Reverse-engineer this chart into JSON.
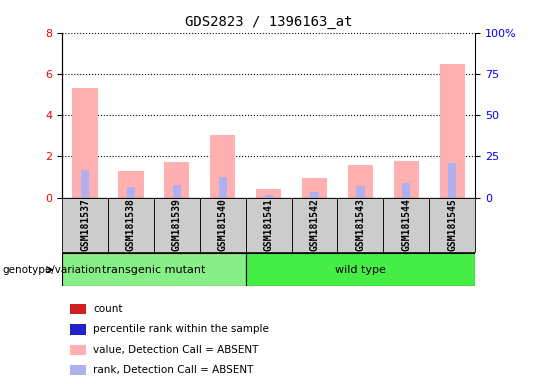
{
  "title": "GDS2823 / 1396163_at",
  "samples": [
    "GSM181537",
    "GSM181538",
    "GSM181539",
    "GSM181540",
    "GSM181541",
    "GSM181542",
    "GSM181543",
    "GSM181544",
    "GSM181545"
  ],
  "pink_bars": [
    5.3,
    1.3,
    1.75,
    3.05,
    0.42,
    0.95,
    1.6,
    1.8,
    6.5
  ],
  "blue_bars": [
    1.35,
    0.5,
    0.6,
    1.0,
    0.15,
    0.28,
    0.55,
    0.7,
    1.7
  ],
  "ylim_left": [
    0,
    8
  ],
  "ylim_right": [
    0,
    100
  ],
  "yticks_left": [
    0,
    2,
    4,
    6,
    8
  ],
  "yticks_right": [
    0,
    25,
    50,
    75,
    100
  ],
  "ytick_labels_right": [
    "0",
    "25",
    "50",
    "75",
    "100%"
  ],
  "group_label": "genotype/variation",
  "legend_items": [
    {
      "color": "#cc2222",
      "label": "count"
    },
    {
      "color": "#2222cc",
      "label": "percentile rank within the sample"
    },
    {
      "color": "#ffb0b0",
      "label": "value, Detection Call = ABSENT"
    },
    {
      "color": "#b0b0ee",
      "label": "rank, Detection Call = ABSENT"
    }
  ],
  "transgenic_count": 4,
  "wild_count": 5
}
